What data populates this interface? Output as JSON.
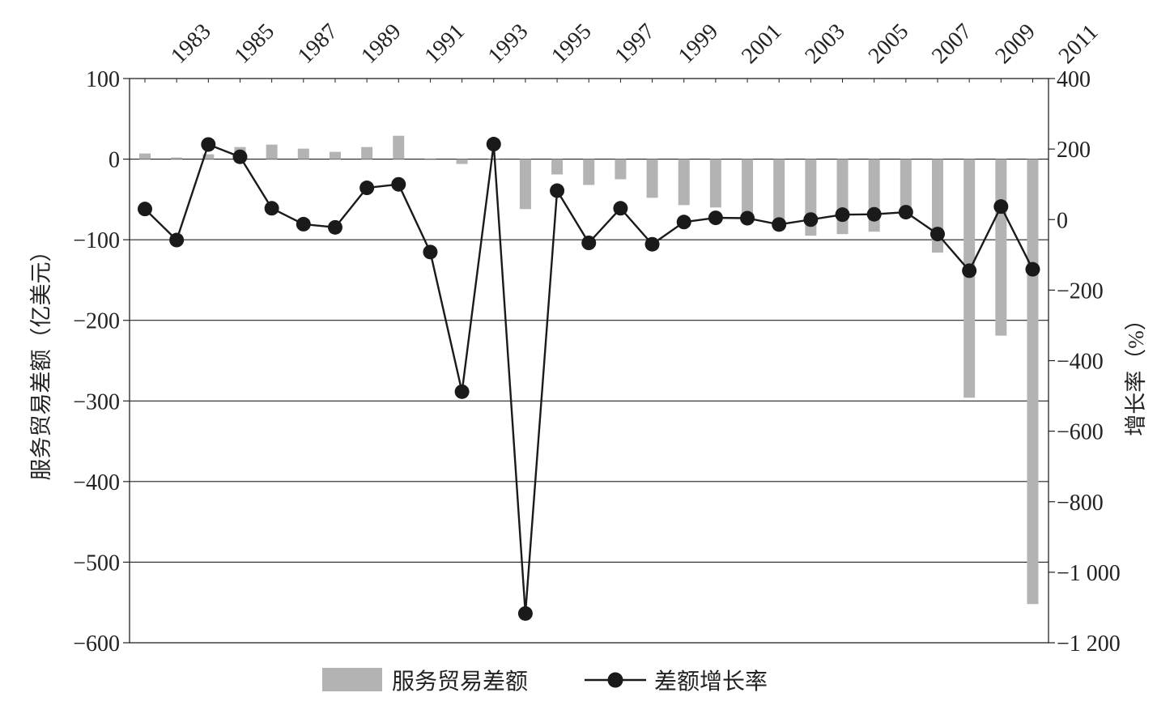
{
  "chart_data": {
    "type": "bar+line",
    "x_tick_labels": [
      "1983",
      "1985",
      "1987",
      "1989",
      "1991",
      "1993",
      "1995",
      "1997",
      "1999",
      "2001",
      "2003",
      "2005",
      "2007",
      "2009",
      "2011"
    ],
    "years": [
      1982,
      1983,
      1984,
      1985,
      1986,
      1987,
      1988,
      1989,
      1990,
      1991,
      1992,
      1993,
      1994,
      1995,
      1996,
      1997,
      1998,
      1999,
      2000,
      2001,
      2002,
      2003,
      2004,
      2005,
      2006,
      2007,
      2008,
      2009,
      2010,
      2011
    ],
    "series": [
      {
        "name": "服务贸易差额",
        "axis": "left",
        "kind": "bar",
        "color": "#b3b3b3",
        "values": [
          7,
          2,
          6,
          15,
          18,
          13,
          9,
          15,
          29,
          -1,
          -6,
          -1,
          -62,
          -19,
          -32,
          -25,
          -48,
          -57,
          -60,
          -67,
          -86,
          -95,
          -93,
          -90,
          -65,
          -116,
          -296,
          -219,
          -552,
          null
        ]
      },
      {
        "name": "差额增长率",
        "axis": "right",
        "kind": "line",
        "color": "#1a1a1a",
        "values": [
          30,
          -58,
          213,
          178,
          32,
          -13,
          -22,
          90,
          100,
          -92,
          -488,
          214,
          -1117,
          82,
          -66,
          32,
          -70,
          -7,
          5,
          4,
          -14,
          0,
          14,
          15,
          21,
          -41,
          -145,
          37,
          -141,
          null
        ]
      }
    ],
    "left_axis": {
      "label": "服务贸易差额（亿美元）",
      "min": -600,
      "max": 100,
      "ticks": [
        100,
        0,
        -100,
        -200,
        -300,
        -400,
        -500,
        -600
      ],
      "tick_labels": [
        "100",
        "0",
        "−100",
        "−200",
        "−300",
        "−400",
        "−500",
        "−600"
      ]
    },
    "right_axis": {
      "label": "增长率（%）",
      "min": -1200,
      "max": 400,
      "ticks": [
        400,
        200,
        0,
        -200,
        -400,
        -600,
        -800,
        -1000,
        -1200
      ],
      "tick_labels": [
        "400",
        "200",
        "0",
        "−200",
        "−400",
        "−600",
        "−800",
        "−1 000",
        "−1 200"
      ]
    },
    "grid": "horizontal at left-axis ticks",
    "legend_position": "bottom-center",
    "legend": [
      {
        "label": "服务贸易差额",
        "kind": "bar"
      },
      {
        "label": "差额增长率",
        "kind": "line-marker"
      }
    ]
  }
}
